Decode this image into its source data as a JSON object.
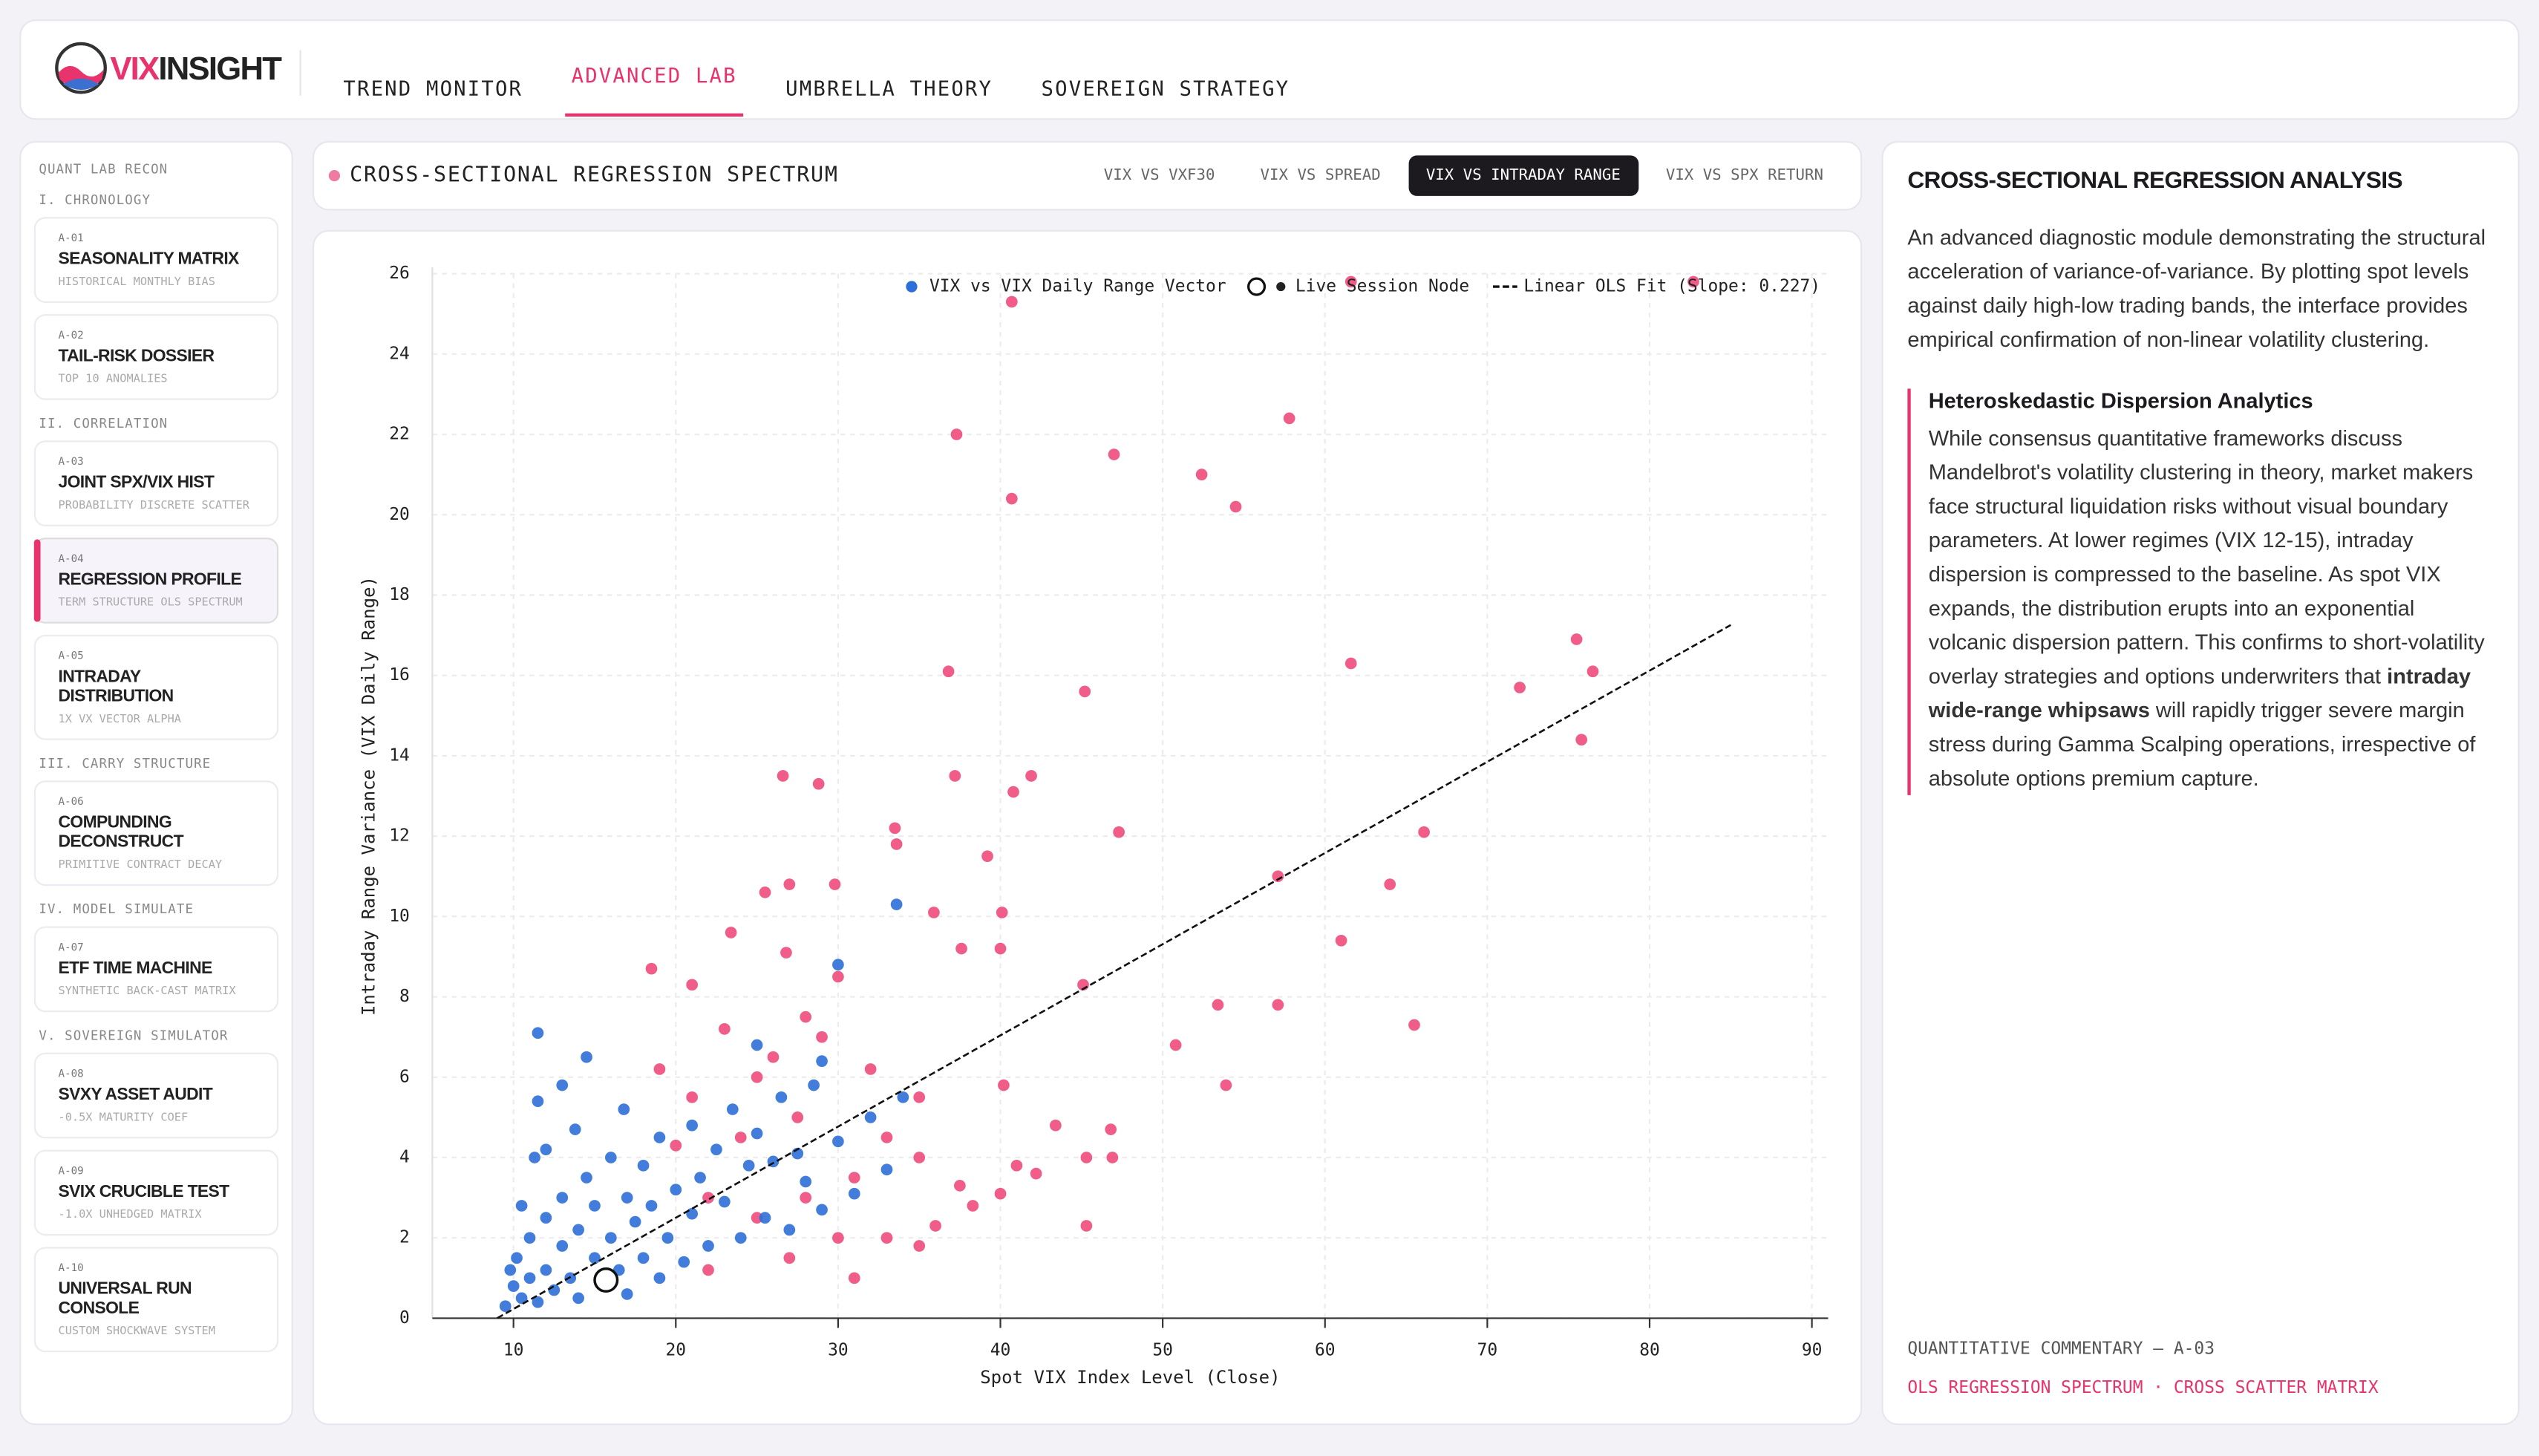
{
  "header": {
    "logo_a": "VIX",
    "logo_b": "INSIGHT",
    "nav": [
      {
        "label": "TREND MONITOR"
      },
      {
        "label": "ADVANCED LAB",
        "active": true
      },
      {
        "label": "UMBRELLA THEORY"
      },
      {
        "label": "SOVEREIGN STRATEGY"
      }
    ]
  },
  "sidebar": {
    "title": "QUANT LAB RECON",
    "sections": [
      {
        "heading": "I. CHRONOLOGY",
        "items": [
          {
            "code": "A-01",
            "title": "SEASONALITY MATRIX",
            "sub": "HISTORICAL MONTHLY BIAS"
          },
          {
            "code": "A-02",
            "title": "TAIL-RISK DOSSIER",
            "sub": "TOP 10 ANOMALIES"
          }
        ]
      },
      {
        "heading": "II. CORRELATION",
        "items": [
          {
            "code": "A-03",
            "title": "JOINT SPX/VIX HIST",
            "sub": "PROBABILITY DISCRETE SCATTER"
          },
          {
            "code": "A-04",
            "title": "REGRESSION PROFILE",
            "sub": "TERM STRUCTURE OLS SPECTRUM",
            "active": true
          },
          {
            "code": "A-05",
            "title": "INTRADAY DISTRIBUTION",
            "sub": "1X VX VECTOR ALPHA"
          }
        ]
      },
      {
        "heading": "III. CARRY STRUCTURE",
        "items": [
          {
            "code": "A-06",
            "title": "COMPUNDING DECONSTRUCT",
            "sub": "PRIMITIVE CONTRACT DECAY"
          }
        ]
      },
      {
        "heading": "IV. MODEL SIMULATE",
        "items": [
          {
            "code": "A-07",
            "title": "ETF TIME MACHINE",
            "sub": "SYNTHETIC BACK-CAST MATRIX"
          }
        ]
      },
      {
        "heading": "V. SOVEREIGN SIMULATOR",
        "items": [
          {
            "code": "A-08",
            "title": "SVXY ASSET AUDIT",
            "sub": "-0.5X MATURITY COEF"
          },
          {
            "code": "A-09",
            "title": "SVIX CRUCIBLE TEST",
            "sub": "-1.0X UNHEDGED MATRIX"
          },
          {
            "code": "A-10",
            "title": "UNIVERSAL RUN CONSOLE",
            "sub": "CUSTOM SHOCKWAVE SYSTEM"
          }
        ]
      }
    ]
  },
  "panel": {
    "title": "CROSS-SECTIONAL REGRESSION SPECTRUM",
    "tabs": [
      {
        "label": "VIX VS VXF30"
      },
      {
        "label": "VIX VS SPREAD"
      },
      {
        "label": "VIX VS INTRADAY RANGE",
        "active": true
      },
      {
        "label": "VIX VS SPX RETURN"
      }
    ]
  },
  "chart_data": {
    "type": "scatter",
    "x_label": "Spot VIX Index Level (Close)",
    "y_label": "Intraday Range Variance (VIX Daily Range)",
    "xlim": [
      5,
      91
    ],
    "xticks": [
      10,
      20,
      30,
      40,
      50,
      60,
      70,
      80,
      90
    ],
    "ylim": [
      0,
      26
    ],
    "yticks": [
      0,
      2,
      4,
      6,
      8,
      10,
      12,
      14,
      16,
      18,
      20,
      22,
      24,
      26
    ],
    "grid": true,
    "series": [
      {
        "color": "#ef4b7c",
        "x": [
          40.7,
          61.6,
          82.7,
          37.3,
          47,
          57.8,
          40.7,
          52.4,
          54.5,
          75.5,
          76.5,
          72,
          61.6,
          36.8,
          45.2,
          75.8,
          26.6,
          28.8,
          40.8,
          41.9,
          37.2,
          33.5,
          47.3,
          66.1,
          39.2,
          33.6,
          57.1,
          64,
          61,
          35.9,
          40.1,
          29.8,
          25.5,
          27,
          23.4,
          18.5,
          21,
          26.8,
          30,
          37.6,
          40,
          45.1,
          53.4,
          57.1,
          65.5,
          50.8,
          53.9,
          40.2,
          46.8,
          43.4,
          46.9,
          45.3,
          41,
          42.2,
          37.5,
          40,
          45.3,
          38.3,
          35,
          33,
          31,
          28,
          25,
          22,
          30,
          33,
          35,
          27,
          24,
          21,
          26,
          29,
          23,
          19,
          27.5,
          32,
          35,
          31,
          36,
          22,
          25,
          20,
          28
        ],
        "values": [
          25.3,
          25.8,
          25.8,
          22.0,
          21.5,
          22.4,
          20.4,
          21.0,
          20.2,
          16.9,
          16.1,
          15.7,
          16.3,
          16.1,
          15.6,
          14.4,
          13.5,
          13.3,
          13.1,
          13.5,
          13.5,
          12.2,
          12.1,
          12.1,
          11.5,
          11.8,
          11.0,
          10.8,
          9.4,
          10.1,
          10.1,
          10.8,
          10.6,
          10.8,
          9.6,
          8.7,
          8.3,
          9.1,
          8.5,
          9.2,
          9.2,
          8.3,
          7.8,
          7.8,
          7.3,
          6.8,
          5.8,
          5.8,
          4.7,
          4.8,
          4.0,
          4.0,
          3.8,
          3.6,
          3.3,
          3.1,
          2.3,
          2.8,
          4.0,
          4.5,
          3.5,
          3.0,
          2.5,
          3.0,
          2.0,
          2.0,
          1.8,
          1.5,
          4.5,
          5.5,
          6.5,
          7.0,
          7.2,
          6.2,
          5.0,
          6.2,
          5.5,
          1.0,
          2.3,
          1.2,
          6.0,
          4.3,
          7.5
        ]
      },
      {
        "name": "VIX vs VIX Daily Range Vector",
        "color": "#2d6fd8",
        "x": [
          9.5,
          10,
          10.2,
          10.5,
          11,
          11,
          11.5,
          12,
          12,
          12.5,
          13,
          13,
          13.5,
          14,
          14,
          14.5,
          15,
          15,
          15.5,
          16,
          16,
          16.5,
          17,
          17,
          17.5,
          18,
          18,
          18.5,
          19,
          19,
          19.5,
          20,
          20.5,
          21,
          21,
          21.5,
          22,
          22.5,
          23,
          23.5,
          24,
          24.5,
          25,
          25.5,
          26,
          26.5,
          27,
          27.5,
          28,
          28.5,
          29,
          30,
          31,
          32,
          33,
          12,
          11.5,
          11.3,
          11.5,
          14.5,
          13,
          30,
          33.6,
          25,
          29,
          34,
          10.5,
          9.8,
          13.8,
          16.8
        ],
        "values": [
          0.3,
          0.8,
          1.5,
          0.5,
          1.0,
          2.0,
          0.4,
          1.2,
          2.5,
          0.7,
          1.8,
          3.0,
          1.0,
          2.2,
          0.5,
          3.5,
          1.5,
          2.8,
          0.8,
          2.0,
          4.0,
          1.2,
          3.0,
          0.6,
          2.4,
          1.5,
          3.8,
          2.8,
          1.0,
          4.5,
          2.0,
          3.2,
          1.4,
          2.6,
          4.8,
          3.5,
          1.8,
          4.2,
          2.9,
          5.2,
          2.0,
          3.8,
          4.6,
          2.5,
          3.9,
          5.5,
          2.2,
          4.1,
          3.4,
          5.8,
          2.7,
          4.4,
          3.1,
          5.0,
          3.7,
          4.2,
          5.4,
          4.0,
          7.1,
          6.5,
          5.8,
          8.8,
          10.3,
          6.8,
          6.4,
          5.5,
          2.8,
          1.2,
          4.7,
          5.2
        ]
      }
    ],
    "live": {
      "name": "Live Session Node",
      "x": 15.7,
      "value": 0.95
    },
    "fit": {
      "name": "Linear OLS Fit (Slope: 0.227)",
      "slope": 0.227,
      "intercept": -2.04,
      "x_range": [
        9,
        85
      ]
    }
  },
  "commentary": {
    "title": "CROSS-SECTIONAL REGRESSION ANALYSIS",
    "intro": "An advanced diagnostic module demonstrating the structural acceleration of variance-of-variance. By plotting spot levels against daily high-low trading bands, the interface provides empirical confirmation of non-linear volatility clustering.",
    "heading": "Heteroskedastic Dispersion Analytics",
    "body_a": "While consensus quantitative frameworks discuss Mandelbrot's volatility clustering in theory, market makers face structural liquidation risks without visual boundary parameters. At lower regimes (VIX 12-15), intraday dispersion is compressed to the baseline. As spot VIX expands, the distribution erupts into an exponential volcanic dispersion pattern. This confirms to short-volatility overlay strategies and options underwriters that ",
    "body_bold": "intraday wide-range whipsaws",
    "body_b": " will rapidly trigger severe margin stress during Gamma Scalping operations, irrespective of absolute options premium capture.",
    "footer_label": "QUANTITATIVE COMMENTARY — A-03",
    "footer_tag": "OLS REGRESSION SPECTRUM · CROSS SCATTER MATRIX"
  }
}
